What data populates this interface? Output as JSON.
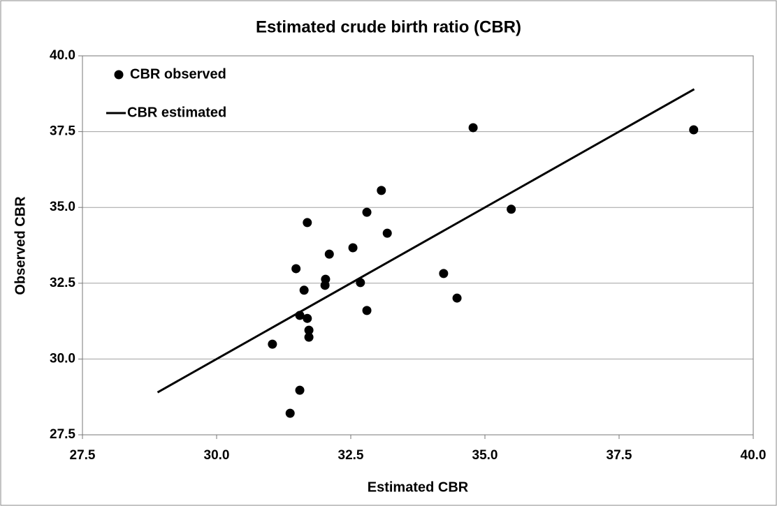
{
  "chart_data": {
    "type": "scatter",
    "title": "Estimated crude birth ratio (CBR)",
    "xlabel": "Estimated CBR",
    "ylabel": "Observed CBR",
    "xlim": [
      27.5,
      40
    ],
    "ylim": [
      27.5,
      40
    ],
    "xticks": [
      27.5,
      {
        "value": 30,
        "label": "30.0"
      },
      32.5,
      {
        "value": 35,
        "label": "35.0"
      },
      37.5,
      {
        "value": 40,
        "label": "40.0"
      }
    ],
    "yticks": [
      27.5,
      {
        "value": 30,
        "label": "30.0"
      },
      32.5,
      {
        "value": 35,
        "label": "35.0"
      },
      37.5,
      {
        "value": 40,
        "label": "40.0"
      }
    ],
    "grid": true,
    "legend": "upper left",
    "series": [
      {
        "name": "CBR observed",
        "color": "#000000",
        "mode": "markers",
        "x": [
          31.04,
          31.37,
          31.55,
          31.48,
          31.55,
          31.63,
          31.69,
          31.69,
          31.72,
          31.72,
          32.02,
          32.03,
          32.1,
          32.54,
          32.68,
          32.8,
          32.8,
          33.07,
          33.18,
          34.23,
          34.48,
          34.78,
          35.49,
          38.89
        ],
        "values": [
          30.49,
          28.21,
          28.97,
          32.98,
          31.44,
          32.27,
          34.5,
          31.34,
          30.95,
          30.72,
          32.43,
          32.63,
          33.46,
          33.67,
          32.52,
          34.84,
          31.6,
          35.56,
          34.15,
          32.82,
          32.01,
          37.63,
          34.94,
          37.56
        ]
      },
      {
        "name": "CBR estimated",
        "color": "#000000",
        "mode": "line",
        "x": [
          28.9,
          38.9
        ],
        "values": [
          28.9,
          38.9
        ]
      }
    ]
  }
}
